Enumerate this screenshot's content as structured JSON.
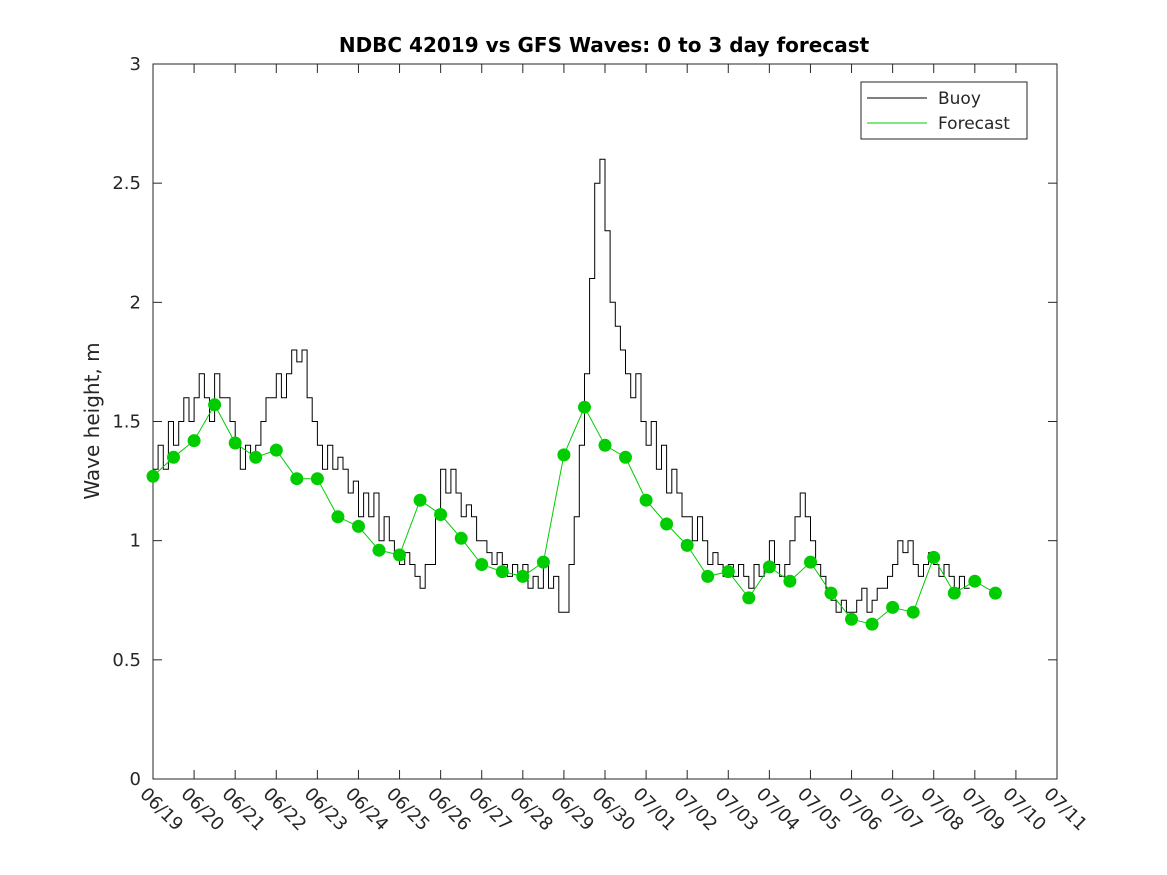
{
  "chart_data": {
    "type": "line",
    "title": "NDBC 42019 vs GFS Waves: 0 to 3 day forecast",
    "xlabel": "",
    "ylabel": "Wave height, m",
    "xlim": [
      "2019-06-19",
      "2019-07-11"
    ],
    "ylim": [
      0,
      3
    ],
    "x_tick_labels": [
      "06/19",
      "06/20",
      "06/21",
      "06/22",
      "06/23",
      "06/24",
      "06/25",
      "06/26",
      "06/27",
      "06/28",
      "06/29",
      "06/30",
      "07/01",
      "07/02",
      "07/03",
      "07/04",
      "07/05",
      "07/06",
      "07/07",
      "07/08",
      "07/09",
      "07/10",
      "07/11"
    ],
    "y_ticks": [
      0,
      0.5,
      1,
      1.5,
      2,
      2.5,
      3
    ],
    "y_tick_labels": [
      "0",
      "0.5",
      "1",
      "1.5",
      "2",
      "2.5",
      "3"
    ],
    "grid": false,
    "legend": {
      "position": "top-right",
      "entries": [
        {
          "label": "Buoy",
          "color": "#000000"
        },
        {
          "label": "Forecast",
          "color": "#00cc00"
        }
      ]
    },
    "series": [
      {
        "name": "Buoy",
        "color": "#000000",
        "points": [
          [
            "06/19 00:00",
            1.3
          ],
          [
            "06/19 03:00",
            1.4
          ],
          [
            "06/19 06:00",
            1.3
          ],
          [
            "06/19 09:00",
            1.5
          ],
          [
            "06/19 12:00",
            1.4
          ],
          [
            "06/19 15:00",
            1.5
          ],
          [
            "06/19 18:00",
            1.6
          ],
          [
            "06/19 21:00",
            1.5
          ],
          [
            "06/20 00:00",
            1.6
          ],
          [
            "06/20 03:00",
            1.7
          ],
          [
            "06/20 06:00",
            1.6
          ],
          [
            "06/20 09:00",
            1.5
          ],
          [
            "06/20 12:00",
            1.7
          ],
          [
            "06/20 15:00",
            1.6
          ],
          [
            "06/20 18:00",
            1.6
          ],
          [
            "06/20 21:00",
            1.5
          ],
          [
            "06/21 00:00",
            1.4
          ],
          [
            "06/21 03:00",
            1.3
          ],
          [
            "06/21 06:00",
            1.4
          ],
          [
            "06/21 09:00",
            1.35
          ],
          [
            "06/21 12:00",
            1.4
          ],
          [
            "06/21 15:00",
            1.5
          ],
          [
            "06/21 18:00",
            1.6
          ],
          [
            "06/21 21:00",
            1.6
          ],
          [
            "06/22 00:00",
            1.7
          ],
          [
            "06/22 03:00",
            1.6
          ],
          [
            "06/22 06:00",
            1.7
          ],
          [
            "06/22 09:00",
            1.8
          ],
          [
            "06/22 12:00",
            1.75
          ],
          [
            "06/22 15:00",
            1.8
          ],
          [
            "06/22 18:00",
            1.6
          ],
          [
            "06/22 21:00",
            1.5
          ],
          [
            "06/23 00:00",
            1.4
          ],
          [
            "06/23 03:00",
            1.3
          ],
          [
            "06/23 06:00",
            1.4
          ],
          [
            "06/23 09:00",
            1.3
          ],
          [
            "06/23 12:00",
            1.35
          ],
          [
            "06/23 15:00",
            1.3
          ],
          [
            "06/23 18:00",
            1.2
          ],
          [
            "06/23 21:00",
            1.25
          ],
          [
            "06/24 00:00",
            1.1
          ],
          [
            "06/24 03:00",
            1.2
          ],
          [
            "06/24 06:00",
            1.1
          ],
          [
            "06/24 09:00",
            1.2
          ],
          [
            "06/24 12:00",
            1.0
          ],
          [
            "06/24 15:00",
            1.1
          ],
          [
            "06/24 18:00",
            1.0
          ],
          [
            "06/24 21:00",
            0.95
          ],
          [
            "06/25 00:00",
            0.9
          ],
          [
            "06/25 03:00",
            0.95
          ],
          [
            "06/25 06:00",
            0.9
          ],
          [
            "06/25 09:00",
            0.85
          ],
          [
            "06/25 12:00",
            0.8
          ],
          [
            "06/25 15:00",
            0.9
          ],
          [
            "06/25 18:00",
            0.9
          ],
          [
            "06/25 21:00",
            1.1
          ],
          [
            "06/26 00:00",
            1.3
          ],
          [
            "06/26 03:00",
            1.2
          ],
          [
            "06/26 06:00",
            1.3
          ],
          [
            "06/26 09:00",
            1.2
          ],
          [
            "06/26 12:00",
            1.1
          ],
          [
            "06/26 15:00",
            1.15
          ],
          [
            "06/26 18:00",
            1.1
          ],
          [
            "06/26 21:00",
            1.0
          ],
          [
            "06/27 00:00",
            1.0
          ],
          [
            "06/27 03:00",
            0.95
          ],
          [
            "06/27 06:00",
            0.9
          ],
          [
            "06/27 09:00",
            0.95
          ],
          [
            "06/27 12:00",
            0.9
          ],
          [
            "06/27 15:00",
            0.85
          ],
          [
            "06/27 18:00",
            0.9
          ],
          [
            "06/27 21:00",
            0.85
          ],
          [
            "06/28 00:00",
            0.9
          ],
          [
            "06/28 03:00",
            0.8
          ],
          [
            "06/28 06:00",
            0.85
          ],
          [
            "06/28 09:00",
            0.8
          ],
          [
            "06/28 12:00",
            0.9
          ],
          [
            "06/28 15:00",
            0.8
          ],
          [
            "06/28 18:00",
            0.85
          ],
          [
            "06/28 21:00",
            0.7
          ],
          [
            "06/29 00:00",
            0.7
          ],
          [
            "06/29 03:00",
            0.9
          ],
          [
            "06/29 06:00",
            1.1
          ],
          [
            "06/29 09:00",
            1.4
          ],
          [
            "06/29 12:00",
            1.7
          ],
          [
            "06/29 15:00",
            2.1
          ],
          [
            "06/29 18:00",
            2.5
          ],
          [
            "06/29 21:00",
            2.6
          ],
          [
            "06/30 00:00",
            2.3
          ],
          [
            "06/30 03:00",
            2.0
          ],
          [
            "06/30 06:00",
            1.9
          ],
          [
            "06/30 09:00",
            1.8
          ],
          [
            "06/30 12:00",
            1.7
          ],
          [
            "06/30 15:00",
            1.6
          ],
          [
            "06/30 18:00",
            1.7
          ],
          [
            "06/30 21:00",
            1.5
          ],
          [
            "07/01 00:00",
            1.4
          ],
          [
            "07/01 03:00",
            1.5
          ],
          [
            "07/01 06:00",
            1.3
          ],
          [
            "07/01 09:00",
            1.4
          ],
          [
            "07/01 12:00",
            1.2
          ],
          [
            "07/01 15:00",
            1.3
          ],
          [
            "07/01 18:00",
            1.2
          ],
          [
            "07/01 21:00",
            1.1
          ],
          [
            "07/02 00:00",
            1.1
          ],
          [
            "07/02 03:00",
            1.0
          ],
          [
            "07/02 06:00",
            1.1
          ],
          [
            "07/02 09:00",
            1.0
          ],
          [
            "07/02 12:00",
            0.9
          ],
          [
            "07/02 15:00",
            0.95
          ],
          [
            "07/02 18:00",
            0.9
          ],
          [
            "07/02 21:00",
            0.85
          ],
          [
            "07/03 00:00",
            0.9
          ],
          [
            "07/03 03:00",
            0.85
          ],
          [
            "07/03 06:00",
            0.9
          ],
          [
            "07/03 09:00",
            0.85
          ],
          [
            "07/03 12:00",
            0.8
          ],
          [
            "07/03 15:00",
            0.9
          ],
          [
            "07/03 18:00",
            0.85
          ],
          [
            "07/03 21:00",
            0.9
          ],
          [
            "07/04 00:00",
            1.0
          ],
          [
            "07/04 03:00",
            0.9
          ],
          [
            "07/04 06:00",
            0.85
          ],
          [
            "07/04 09:00",
            0.9
          ],
          [
            "07/04 12:00",
            1.0
          ],
          [
            "07/04 15:00",
            1.1
          ],
          [
            "07/04 18:00",
            1.2
          ],
          [
            "07/04 21:00",
            1.1
          ],
          [
            "07/05 00:00",
            1.0
          ],
          [
            "07/05 03:00",
            0.9
          ],
          [
            "07/05 06:00",
            0.85
          ],
          [
            "07/05 09:00",
            0.8
          ],
          [
            "07/05 12:00",
            0.75
          ],
          [
            "07/05 15:00",
            0.7
          ],
          [
            "07/05 18:00",
            0.75
          ],
          [
            "07/05 21:00",
            0.7
          ],
          [
            "07/06 00:00",
            0.7
          ],
          [
            "07/06 03:00",
            0.75
          ],
          [
            "07/06 06:00",
            0.8
          ],
          [
            "07/06 09:00",
            0.7
          ],
          [
            "07/06 12:00",
            0.75
          ],
          [
            "07/06 15:00",
            0.8
          ],
          [
            "07/06 18:00",
            0.8
          ],
          [
            "07/06 21:00",
            0.85
          ],
          [
            "07/07 00:00",
            0.9
          ],
          [
            "07/07 03:00",
            1.0
          ],
          [
            "07/07 06:00",
            0.95
          ],
          [
            "07/07 09:00",
            1.0
          ],
          [
            "07/07 12:00",
            0.9
          ],
          [
            "07/07 15:00",
            0.85
          ],
          [
            "07/07 18:00",
            0.9
          ],
          [
            "07/07 21:00",
            0.95
          ],
          [
            "07/08 00:00",
            0.9
          ],
          [
            "07/08 03:00",
            0.85
          ],
          [
            "07/08 06:00",
            0.9
          ],
          [
            "07/08 09:00",
            0.85
          ],
          [
            "07/08 12:00",
            0.8
          ],
          [
            "07/08 15:00",
            0.85
          ],
          [
            "07/08 18:00",
            0.8
          ],
          [
            "07/08 21:00",
            0.8
          ]
        ]
      },
      {
        "name": "Forecast",
        "color": "#00cc00",
        "points": [
          [
            "06/19 00:00",
            1.27
          ],
          [
            "06/19 12:00",
            1.35
          ],
          [
            "06/20 00:00",
            1.42
          ],
          [
            "06/20 12:00",
            1.57
          ],
          [
            "06/21 00:00",
            1.41
          ],
          [
            "06/21 12:00",
            1.35
          ],
          [
            "06/22 00:00",
            1.38
          ],
          [
            "06/22 12:00",
            1.26
          ],
          [
            "06/23 00:00",
            1.26
          ],
          [
            "06/23 12:00",
            1.1
          ],
          [
            "06/24 00:00",
            1.06
          ],
          [
            "06/24 12:00",
            0.96
          ],
          [
            "06/25 00:00",
            0.94
          ],
          [
            "06/25 12:00",
            1.17
          ],
          [
            "06/26 00:00",
            1.11
          ],
          [
            "06/26 12:00",
            1.01
          ],
          [
            "06/27 00:00",
            0.9
          ],
          [
            "06/27 12:00",
            0.87
          ],
          [
            "06/28 00:00",
            0.85
          ],
          [
            "06/28 12:00",
            0.91
          ],
          [
            "06/29 00:00",
            1.36
          ],
          [
            "06/29 12:00",
            1.56
          ],
          [
            "06/30 00:00",
            1.4
          ],
          [
            "06/30 12:00",
            1.35
          ],
          [
            "07/01 00:00",
            1.17
          ],
          [
            "07/01 12:00",
            1.07
          ],
          [
            "07/02 00:00",
            0.98
          ],
          [
            "07/02 12:00",
            0.85
          ],
          [
            "07/03 00:00",
            0.87
          ],
          [
            "07/03 12:00",
            0.76
          ],
          [
            "07/04 00:00",
            0.89
          ],
          [
            "07/04 12:00",
            0.83
          ],
          [
            "07/05 00:00",
            0.91
          ],
          [
            "07/05 12:00",
            0.78
          ],
          [
            "07/06 00:00",
            0.67
          ],
          [
            "07/06 12:00",
            0.65
          ],
          [
            "07/07 00:00",
            0.72
          ],
          [
            "07/07 12:00",
            0.7
          ],
          [
            "07/08 00:00",
            0.93
          ],
          [
            "07/08 12:00",
            0.78
          ],
          [
            "07/09 00:00",
            0.83
          ],
          [
            "07/09 12:00",
            0.78
          ]
        ],
        "markers": true
      }
    ]
  }
}
